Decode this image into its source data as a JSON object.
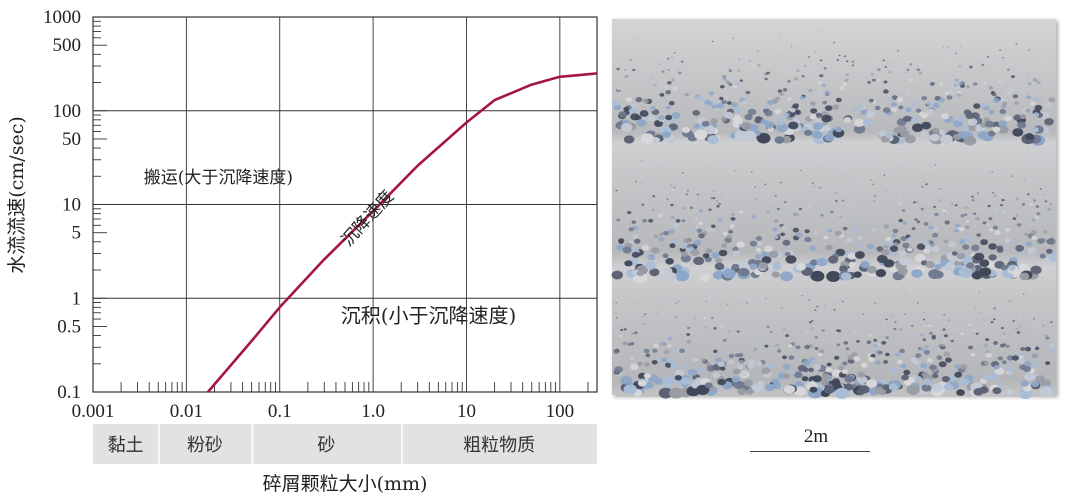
{
  "chart_data": {
    "type": "line",
    "x_scale": "log",
    "y_scale": "log",
    "xlim": [
      0.001,
      250
    ],
    "ylim": [
      0.1,
      1000
    ],
    "ylabel": "水流流速(cm/sec)",
    "xlabel": "碎屑颗粒大小(mm)",
    "x_ticks": [
      {
        "value": 0.001,
        "label": "0.001"
      },
      {
        "value": 0.01,
        "label": "0.01"
      },
      {
        "value": 0.1,
        "label": "0.1"
      },
      {
        "value": 1,
        "label": "1.0"
      },
      {
        "value": 10,
        "label": "10"
      },
      {
        "value": 100,
        "label": "100"
      }
    ],
    "y_ticks": [
      {
        "value": 0.1,
        "label": "0.1"
      },
      {
        "value": 0.5,
        "label": "0.5"
      },
      {
        "value": 1,
        "label": "1"
      },
      {
        "value": 5,
        "label": "5"
      },
      {
        "value": 10,
        "label": "10"
      },
      {
        "value": 50,
        "label": "50"
      },
      {
        "value": 100,
        "label": "100"
      },
      {
        "value": 500,
        "label": "500"
      },
      {
        "value": 1000,
        "label": "1000"
      }
    ],
    "grid": true,
    "series": [
      {
        "name": "沉降速度",
        "color": "#a3154a",
        "x": [
          0.017,
          0.05,
          0.1,
          0.3,
          1.0,
          3.0,
          10,
          20,
          50,
          100,
          250
        ],
        "y": [
          0.1,
          0.35,
          0.8,
          2.6,
          8.5,
          26,
          75,
          130,
          190,
          230,
          250
        ]
      }
    ],
    "annotations": [
      {
        "text": "搬运(大于沉降速度)",
        "x": 0.0035,
        "y": 17
      },
      {
        "text": "沉积(小于沉降速度)",
        "x": 0.45,
        "y": 0.55
      },
      {
        "text": "沉降速度",
        "x": 0.55,
        "y": 3.5,
        "rotation": -48
      }
    ],
    "size_classes": [
      {
        "label": "黏土",
        "x_from": 0.001,
        "x_to": 0.005
      },
      {
        "label": "粉砂",
        "x_from": 0.005,
        "x_to": 0.05
      },
      {
        "label": "砂",
        "x_from": 0.05,
        "x_to": 2
      },
      {
        "label": "粗粒物质",
        "x_from": 2,
        "x_to": 250
      }
    ]
  },
  "colors": {
    "curve": "#a3154a",
    "grid": "#333333",
    "class_band": "#e2e2e2",
    "photo_base": "#c9c9cb",
    "pebble_blue": "#8ea7c8",
    "pebble_dark": "#3f4658"
  },
  "photo": {
    "scale_label": "2m"
  }
}
